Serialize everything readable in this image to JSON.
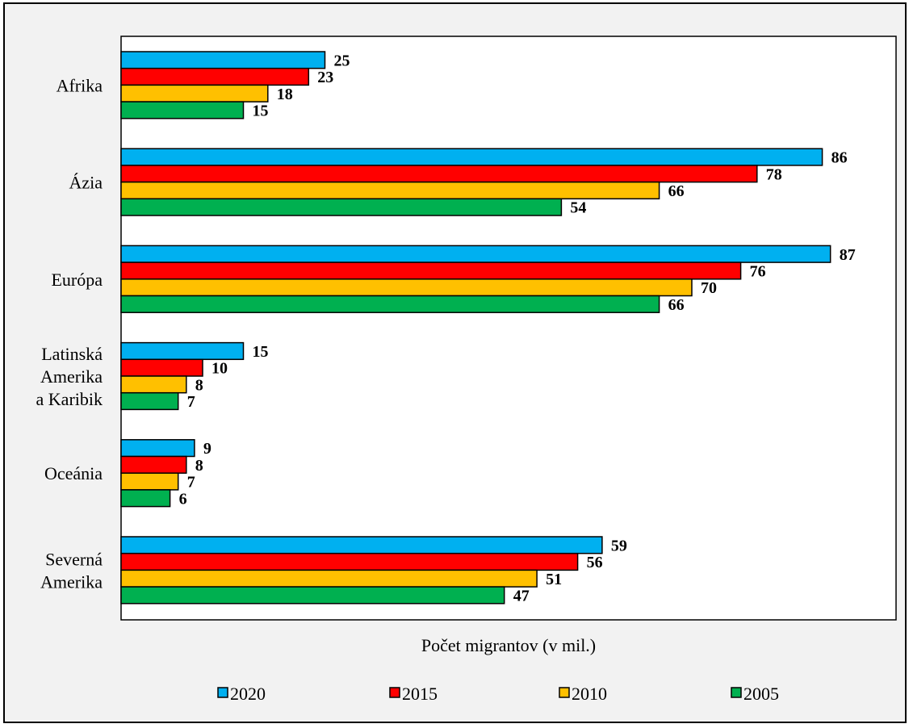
{
  "chart_data": {
    "type": "bar",
    "orientation": "horizontal",
    "categories": [
      [
        "Afrika"
      ],
      [
        "Ázia"
      ],
      [
        "Európa"
      ],
      [
        "Latinská",
        "Amerika",
        "a Karibik"
      ],
      [
        "Oceánia"
      ],
      [
        "Severná",
        "Amerika"
      ]
    ],
    "series": [
      {
        "name": "2020",
        "color": "#00b0f0",
        "values": [
          25,
          86,
          87,
          15,
          9,
          59
        ]
      },
      {
        "name": "2015",
        "color": "#ff0000",
        "values": [
          23,
          78,
          76,
          10,
          8,
          56
        ]
      },
      {
        "name": "2010",
        "color": "#ffc000",
        "values": [
          18,
          66,
          70,
          8,
          7,
          51
        ]
      },
      {
        "name": "2005",
        "color": "#00b050",
        "values": [
          15,
          54,
          66,
          7,
          6,
          47
        ]
      }
    ],
    "xlabel": "Počet migrantov (v mil.)",
    "xlim": [
      0,
      95
    ],
    "grid": false,
    "legend": "bottom",
    "data_labels": true
  }
}
